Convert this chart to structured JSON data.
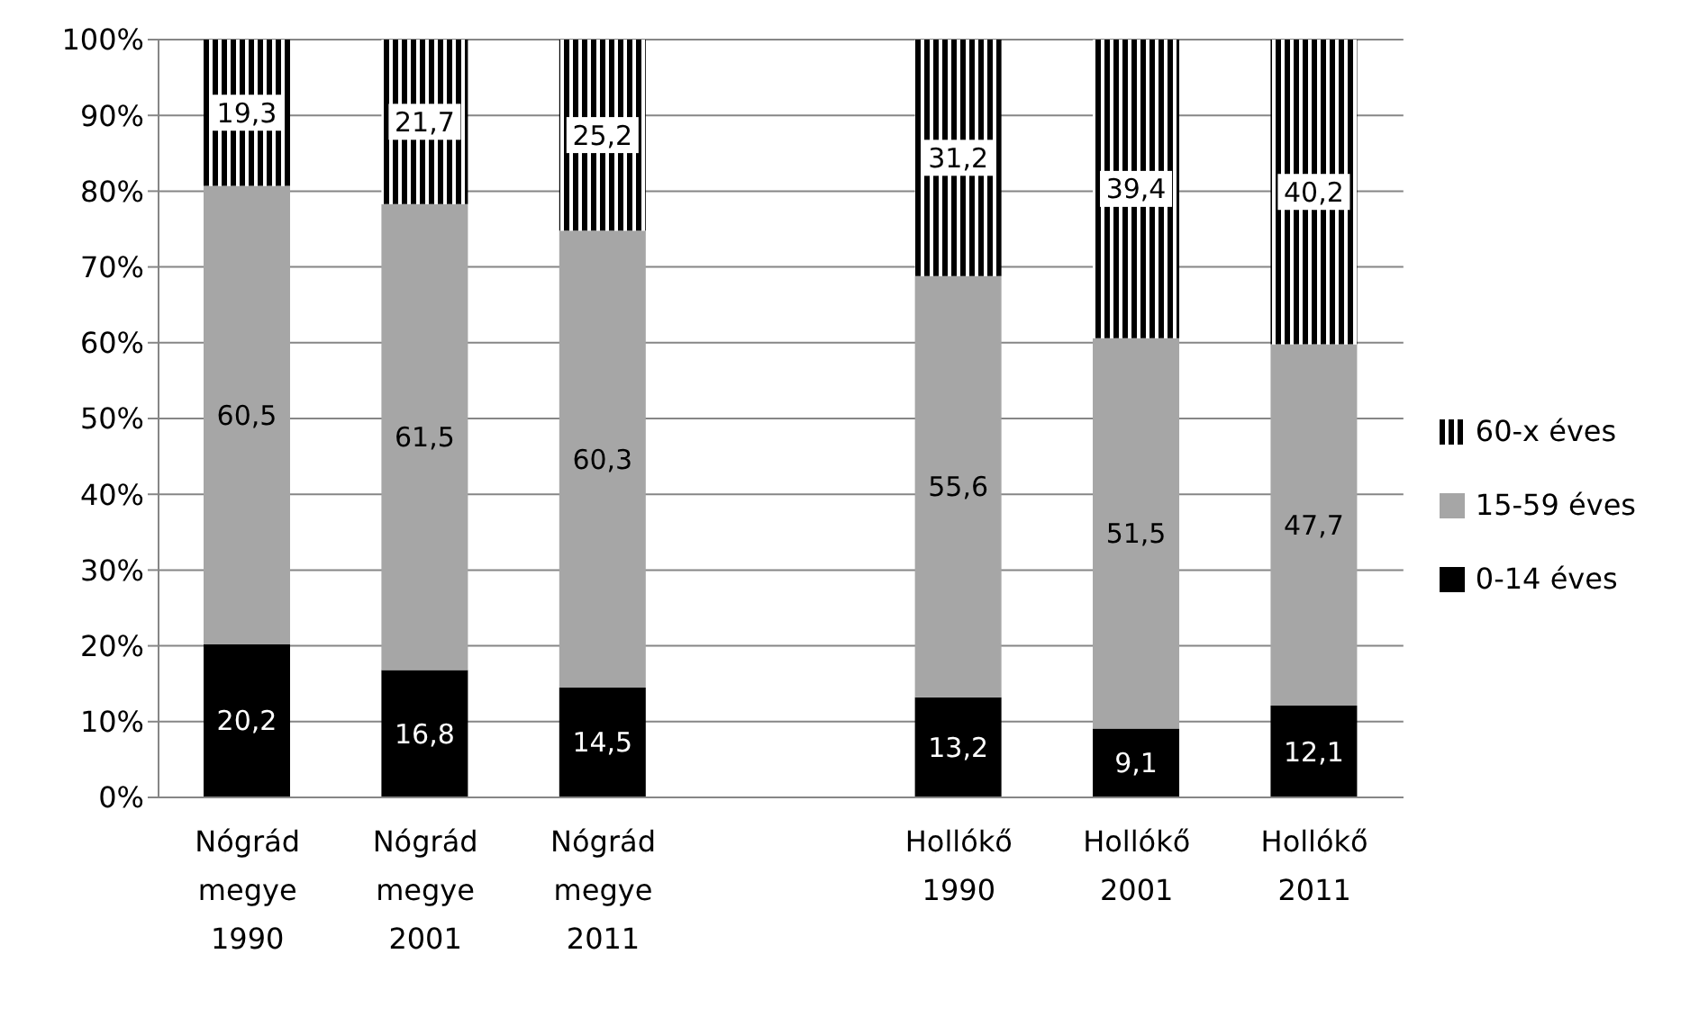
{
  "chart_data": {
    "type": "bar",
    "stacked": true,
    "categories": [
      "Nógrád megye 1990",
      "Nógrád megye 2001",
      "Nógrád megye 2011",
      null,
      "Hollókő 1990",
      "Hollókő 2001",
      "Hollókő 2011"
    ],
    "series": [
      {
        "name": "0-14 éves",
        "color": "#000000",
        "values": [
          20.2,
          16.8,
          14.5,
          null,
          13.2,
          9.1,
          12.1
        ],
        "value_labels": [
          "20,2",
          "16,8",
          "14,5",
          null,
          "13,2",
          "9,1",
          "12,1"
        ]
      },
      {
        "name": "15-59 éves",
        "color": "#a6a6a6",
        "values": [
          60.5,
          61.5,
          60.3,
          null,
          55.6,
          51.5,
          47.7
        ],
        "value_labels": [
          "60,5",
          "61,5",
          "60,3",
          null,
          "55,6",
          "51,5",
          "47,7"
        ]
      },
      {
        "name": "60-x éves",
        "color": "#000000",
        "values": [
          19.3,
          21.7,
          25.2,
          null,
          31.2,
          39.4,
          40.2
        ],
        "value_labels": [
          "19,3",
          "21,7",
          "25,2",
          null,
          "31,2",
          "39,4",
          "40,2"
        ]
      }
    ],
    "ylim": [
      0,
      100
    ],
    "yticks": [
      {
        "value": 0,
        "label": "0%"
      },
      {
        "value": 10,
        "label": "10%"
      },
      {
        "value": 20,
        "label": "20%"
      },
      {
        "value": 30,
        "label": "30%"
      },
      {
        "value": 40,
        "label": "40%"
      },
      {
        "value": 50,
        "label": "50%"
      },
      {
        "value": 60,
        "label": "60%"
      },
      {
        "value": 70,
        "label": "70%"
      },
      {
        "value": 80,
        "label": "80%"
      },
      {
        "value": 90,
        "label": "90%"
      },
      {
        "value": 100,
        "label": "100%"
      }
    ],
    "grid": "y",
    "legend": "right"
  }
}
